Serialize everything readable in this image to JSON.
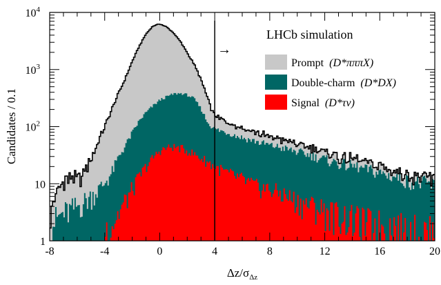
{
  "chart_data": {
    "type": "area",
    "title": "",
    "annotation": "LHCb simulation",
    "cut_arrow_label": "→",
    "xlabel": "Δz/σ",
    "xlabel_sub": "Δz",
    "ylabel": "Candidates / 0.1",
    "xlim": [
      -8,
      20
    ],
    "ylim": [
      1,
      10000
    ],
    "yscale": "log",
    "cut_x": 4,
    "x_ticks": [
      -8,
      -4,
      0,
      4,
      8,
      12,
      16,
      20
    ],
    "x_tick_labels": [
      "-8",
      "-4",
      "0",
      "4",
      "8",
      "12",
      "16",
      "20"
    ],
    "y_ticks": [
      1,
      10,
      100,
      1000,
      10000
    ],
    "y_tick_labels": [
      {
        "base": "1",
        "exp": ""
      },
      {
        "base": "10",
        "exp": ""
      },
      {
        "base": "10",
        "exp": "2"
      },
      {
        "base": "10",
        "exp": "3"
      },
      {
        "base": "10",
        "exp": "4"
      }
    ],
    "legend_position": "top-right",
    "colors": {
      "prompt": "#c8c8c8",
      "double_charm": "#006664",
      "signal": "#ff0000",
      "total_line": "#000000"
    },
    "series": [
      {
        "name": "Prompt",
        "label_math": "(D*πππX)",
        "color": "#c8c8c8",
        "x": [
          -8,
          -7.5,
          -7,
          -6.5,
          -6,
          -5.5,
          -5,
          -4.5,
          -4,
          -3.5,
          -3,
          -2.5,
          -2,
          -1.5,
          -1,
          -0.5,
          0,
          0.5,
          1,
          1.5,
          2,
          2.5,
          3,
          3.5,
          4,
          5,
          6,
          8,
          10,
          12,
          14,
          16,
          18,
          20
        ],
        "values": [
          2,
          4,
          8,
          9,
          8,
          11,
          22,
          45,
          90,
          180,
          350,
          650,
          1300,
          2400,
          4000,
          5500,
          6000,
          5200,
          4000,
          2700,
          1600,
          900,
          450,
          180,
          50,
          30,
          22,
          14,
          10,
          6,
          4.5,
          3.5,
          2.5,
          2
        ]
      },
      {
        "name": "Double-charm",
        "label_math": "(D*DX)",
        "color": "#006664",
        "x": [
          -8,
          -7,
          -6,
          -5,
          -4,
          -3.5,
          -3,
          -2.5,
          -2,
          -1.5,
          -1,
          -0.5,
          0,
          0.5,
          1,
          1.5,
          2,
          2.5,
          3,
          3.5,
          4,
          5,
          6,
          7,
          8,
          9,
          10,
          11,
          12,
          13,
          14,
          15,
          16,
          17,
          18,
          19,
          20
        ],
        "values": [
          2,
          3,
          4,
          6,
          10,
          15,
          28,
          45,
          75,
          120,
          170,
          220,
          280,
          320,
          360,
          370,
          350,
          300,
          200,
          110,
          85,
          72,
          60,
          52,
          45,
          40,
          35,
          30,
          26,
          22,
          20,
          17,
          15,
          13,
          11,
          10,
          9
        ]
      },
      {
        "name": "Signal",
        "label_math": "(D*τν)",
        "color": "#ff0000",
        "x": [
          -4,
          -3.5,
          -3,
          -2.5,
          -2,
          -1.5,
          -1,
          -0.5,
          0,
          0.5,
          1,
          1.5,
          2,
          2.5,
          3,
          3.5,
          4,
          5,
          6,
          7,
          8,
          9,
          10,
          11,
          12,
          13,
          14,
          15,
          16,
          17,
          18,
          19,
          20
        ],
        "values": [
          1.5,
          2,
          3,
          5,
          8,
          13,
          20,
          28,
          38,
          42,
          44,
          42,
          38,
          33,
          28,
          24,
          20,
          15,
          12,
          9,
          8,
          6.5,
          5,
          4.2,
          3.5,
          3,
          2.5,
          2.2,
          2,
          1.8,
          1.6,
          1.5,
          1.4
        ]
      }
    ]
  }
}
